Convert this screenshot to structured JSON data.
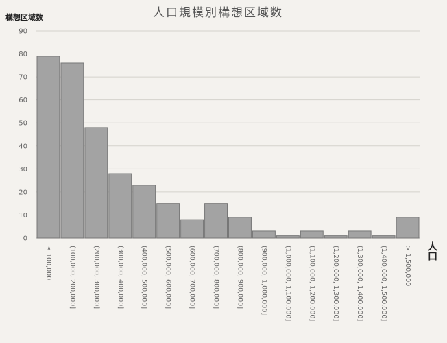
{
  "chart_data": {
    "type": "bar",
    "title": "人口規模別構想区域数",
    "ylabel": "構想区域数",
    "xlabel": "人口",
    "ylim": [
      0,
      90
    ],
    "yticks": [
      0,
      10,
      20,
      30,
      40,
      50,
      60,
      70,
      80,
      90
    ],
    "grid": true,
    "categories": [
      "≤ 100,000",
      "(100,000, 200,000]",
      "(200,000, 300,000]",
      "(300,000, 400,000]",
      "(400,000, 500,000]",
      "(500,000, 600,000]",
      "(600,000, 700,000]",
      "(700,000, 800,000]",
      "(800,000, 900,000]",
      "(900,000, 1,000,000]",
      "(1,000,000, 1,100,000]",
      "(1,100,000, 1,200,000]",
      "(1,200,000, 1,300,000]",
      "(1,300,000, 1,400,000]",
      "(1,400,000, 1,500,000]",
      "> 1,500,000"
    ],
    "values": [
      79,
      76,
      48,
      28,
      23,
      15,
      8,
      15,
      9,
      3,
      1,
      3,
      1,
      3,
      1,
      9
    ]
  }
}
